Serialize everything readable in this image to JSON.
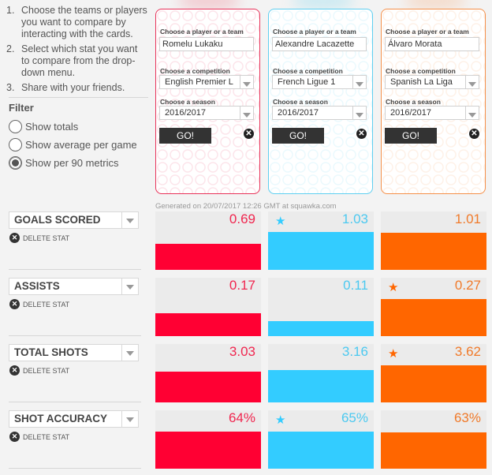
{
  "instructions": [
    {
      "num": "1.",
      "text": "Choose the teams or players you want to compare by interacting with the cards."
    },
    {
      "num": "2.",
      "text": "Select which stat you want to compare from the drop-down menu."
    },
    {
      "num": "3.",
      "text": "Share with your friends."
    }
  ],
  "filter": {
    "title": "Filter",
    "options": [
      {
        "label": "Show totals",
        "checked": false
      },
      {
        "label": "Show average per game",
        "checked": false
      },
      {
        "label": "Show per 90 metrics",
        "checked": true
      }
    ]
  },
  "cards": [
    {
      "color": "#e8335a",
      "player_label": "Choose a player or a team",
      "player": "Romelu Lukaku",
      "competition_label": "Choose a competition",
      "competition": "English Premier L",
      "season_label": "Choose a season",
      "season": "2016/2017",
      "go_label": "GO!",
      "close_icon": "close-circle-icon"
    },
    {
      "color": "#5fcff0",
      "player_label": "Choose a player or a team",
      "player": "Alexandre Lacazette",
      "competition_label": "Choose a competition",
      "competition": "French Ligue 1",
      "season_label": "Choose a season",
      "season": "2016/2017",
      "go_label": "GO!",
      "close_icon": "close-circle-icon"
    },
    {
      "color": "#f5904a",
      "player_label": "Choose a player or a team",
      "player": "Álvaro Morata",
      "competition_label": "Choose a competition",
      "competition": "Spanish La Liga",
      "season_label": "Choose a season",
      "season": "2016/2017",
      "go_label": "GO!",
      "close_icon": "close-circle-icon"
    }
  ],
  "generated_text": "Generated on 20/07/2017 12:26 GMT at squawka.com",
  "delete_label": "DELETE STAT",
  "colors": {
    "player1": "#ff0033",
    "player2": "#33ccff",
    "player3": "#ff6600",
    "player1_text": "#f0264f",
    "player2_text": "#4cc9f0",
    "player3_text": "#f07a2a"
  },
  "stats": [
    {
      "name": "GOALS SCORED",
      "values": [
        "0.69",
        "1.03",
        "1.01"
      ],
      "fill": [
        0.45,
        0.65,
        0.64
      ],
      "best": 1
    },
    {
      "name": "ASSISTS",
      "values": [
        "0.17",
        "0.11",
        "0.27"
      ],
      "fill": [
        0.39,
        0.26,
        0.64
      ],
      "best": 2
    },
    {
      "name": "TOTAL SHOTS",
      "values": [
        "3.03",
        "3.16",
        "3.62"
      ],
      "fill": [
        0.53,
        0.56,
        0.64
      ],
      "best": 2
    },
    {
      "name": "SHOT ACCURACY",
      "values": [
        "64%",
        "65%",
        "63%"
      ],
      "fill": [
        0.63,
        0.64,
        0.62
      ],
      "best": 1
    }
  ]
}
